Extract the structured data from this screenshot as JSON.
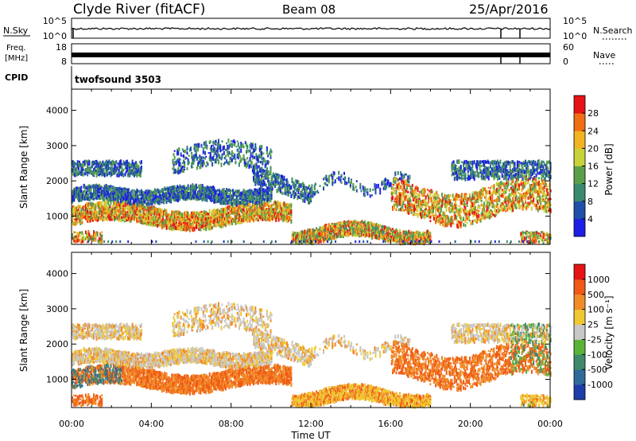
{
  "header": {
    "station": "Clyde River (fitACF)",
    "beam": "Beam 08",
    "date": "25/Apr/2016"
  },
  "top_panels": {
    "nsky": {
      "label": "N.Sky",
      "ticks": [
        "10^5",
        "10^0"
      ],
      "right_label": "N.Search",
      "right_ticks": [
        "10^5",
        "10^0"
      ]
    },
    "freq": {
      "label_line1": "Freq.",
      "label_line2": "[MHz]",
      "ticks": [
        "18",
        "8"
      ],
      "right_label": "Nave",
      "right_ticks": [
        "60",
        "0"
      ]
    },
    "cpid": {
      "label": "CPID",
      "value": "twofsound 3503"
    }
  },
  "chart_data": [
    {
      "type": "heatmap",
      "name": "Power",
      "ylabel": "Slant Range [km]",
      "xlabel": "",
      "ylim": [
        200,
        4600
      ],
      "yticks": [
        "1000",
        "2000",
        "3000",
        "4000"
      ],
      "xticks": [
        "00:00",
        "04:00",
        "08:00",
        "12:00",
        "16:00",
        "20:00",
        "00:00"
      ],
      "colorbar": {
        "label": "Power [dB]",
        "ticks": [
          "4",
          "8",
          "12",
          "16",
          "20",
          "24",
          "28"
        ],
        "colors": [
          "#1e1ee6",
          "#1f4fa8",
          "#3a8a6e",
          "#5aa04a",
          "#c8d23a",
          "#f0b423",
          "#f06e14",
          "#e61414"
        ]
      }
    },
    {
      "type": "heatmap",
      "name": "Velocity",
      "ylabel": "Slant Range [km]",
      "xlabel": "Time UT",
      "ylim": [
        200,
        4600
      ],
      "yticks": [
        "1000",
        "2000",
        "3000",
        "4000"
      ],
      "xticks": [
        "00:00",
        "04:00",
        "08:00",
        "12:00",
        "16:00",
        "20:00",
        "00:00"
      ],
      "colorbar": {
        "label": "Velocity [m s⁻¹]",
        "ticks": [
          "1000",
          "500",
          "100",
          "25",
          "-25",
          "-100",
          "-500",
          "-1000"
        ],
        "colors": [
          "#1e3caa",
          "#2f6a9a",
          "#3f8a6a",
          "#5ab43a",
          "#c8c8c8",
          "#f0c832",
          "#f08c28",
          "#f05a14",
          "#e61414"
        ]
      }
    }
  ]
}
